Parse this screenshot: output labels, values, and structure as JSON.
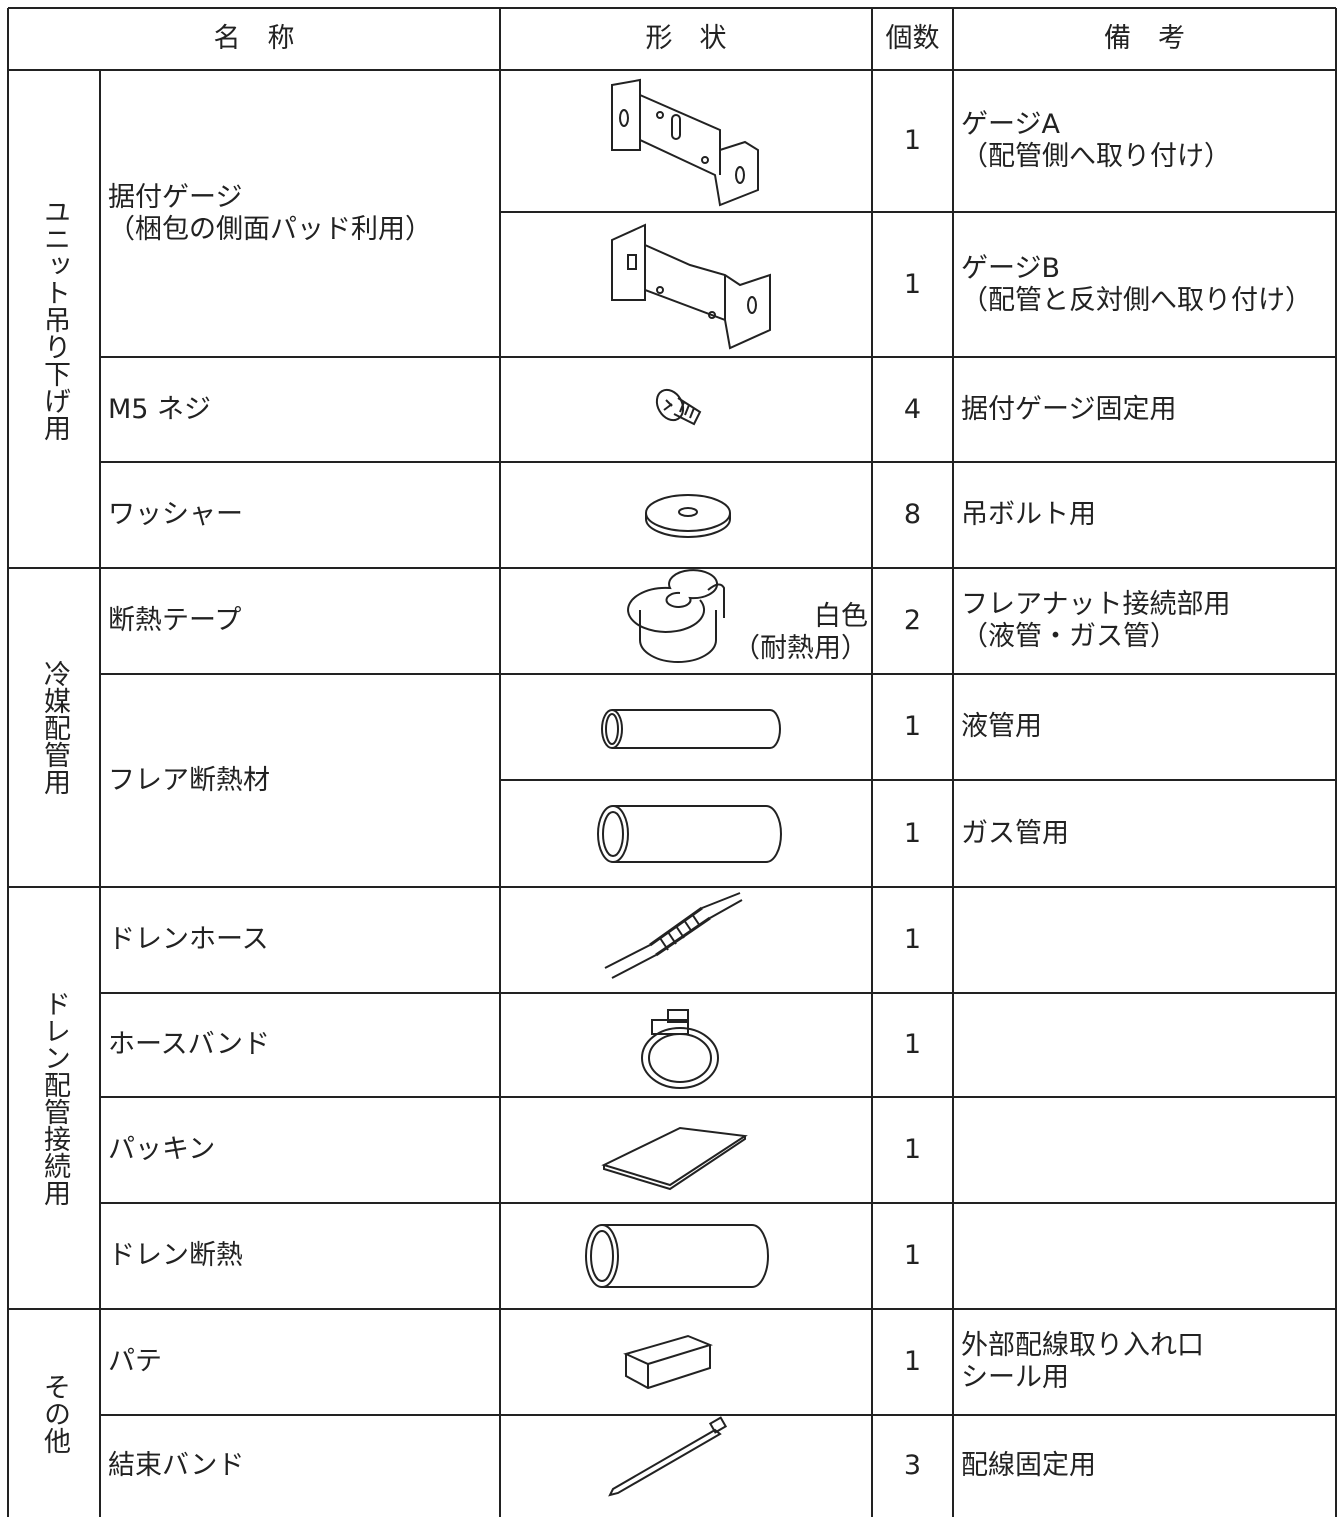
{
  "header": {
    "name": "名　称",
    "shape": "形　状",
    "qty": "個数",
    "note": "備　考"
  },
  "groups": [
    {
      "label": "ユニット吊り下げ用",
      "items": [
        {
          "name": [
            "据付ゲージ",
            "（梱包の側面パッド利用）"
          ],
          "variants": [
            {
              "qty": 1,
              "note": [
                "ゲージA",
                "（配管側へ取り付け）"
              ]
            },
            {
              "qty": 1,
              "note": [
                "ゲージB",
                "（配管と反対側へ取り付け）"
              ]
            }
          ]
        },
        {
          "name": [
            "M5 ネジ"
          ],
          "variants": [
            {
              "qty": 4,
              "note": [
                "据付ゲージ固定用"
              ]
            }
          ]
        },
        {
          "name": [
            "ワッシャー"
          ],
          "variants": [
            {
              "qty": 8,
              "note": [
                "吊ボルト用"
              ]
            }
          ]
        }
      ]
    },
    {
      "label": "冷媒配管用",
      "items": [
        {
          "name": [
            "断熱テープ"
          ],
          "variants": [
            {
              "qty": 2,
              "shape_label": [
                "白色",
                "（耐熱用）"
              ],
              "note": [
                "フレアナット接続部用",
                "（液管・ガス管）"
              ]
            }
          ]
        },
        {
          "name": [
            "フレア断熱材"
          ],
          "variants": [
            {
              "qty": 1,
              "note": [
                "液管用"
              ]
            },
            {
              "qty": 1,
              "note": [
                "ガス管用"
              ]
            }
          ]
        }
      ]
    },
    {
      "label": "ドレン配管接続用",
      "items": [
        {
          "name": [
            "ドレンホース"
          ],
          "variants": [
            {
              "qty": 1
            }
          ]
        },
        {
          "name": [
            "ホースバンド"
          ],
          "variants": [
            {
              "qty": 1
            }
          ]
        },
        {
          "name": [
            "パッキン"
          ],
          "variants": [
            {
              "qty": 1
            }
          ]
        },
        {
          "name": [
            "ドレン断熱"
          ],
          "variants": [
            {
              "qty": 1
            }
          ]
        }
      ]
    },
    {
      "label": "その他",
      "items": [
        {
          "name": [
            "パテ"
          ],
          "variants": [
            {
              "qty": 1,
              "note": [
                "外部配線取り入れ口",
                "シール用"
              ]
            }
          ]
        },
        {
          "name": [
            "結束バンド"
          ],
          "variants": [
            {
              "qty": 3,
              "note": [
                "配線固定用"
              ]
            }
          ]
        }
      ]
    }
  ]
}
